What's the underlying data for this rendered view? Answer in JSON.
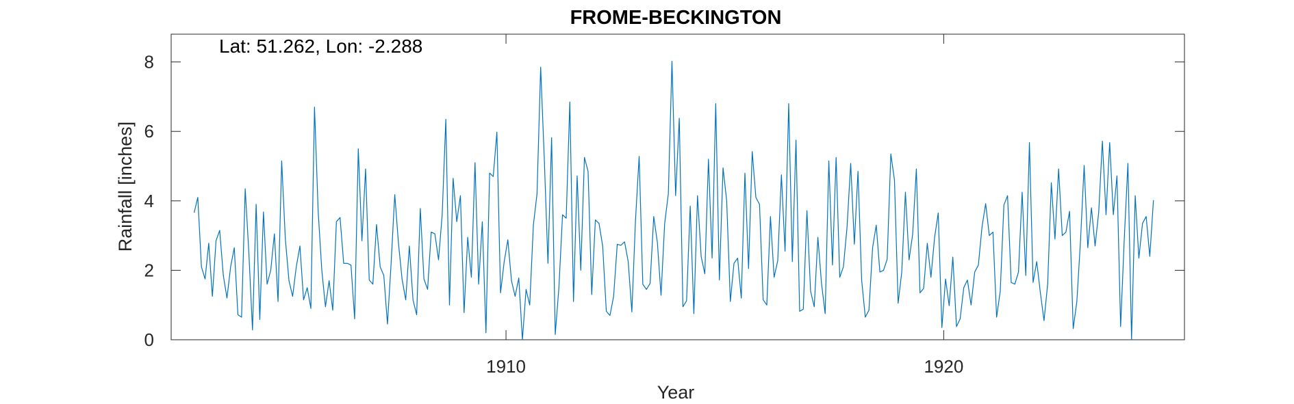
{
  "chart_data": {
    "type": "line",
    "title": "FROME-BECKINGTON",
    "xlabel": "Year",
    "ylabel": "Rainfall [inches]",
    "annotation": "Lat: 51.262, Lon: -2.288",
    "xlim": [
      1902.35,
      1925.5
    ],
    "ylim": [
      0,
      8.8
    ],
    "x_ticks": [
      1910,
      1920
    ],
    "y_ticks": [
      0,
      2,
      4,
      6,
      8
    ],
    "grid": false,
    "line_color": "#0072BD",
    "x_start": 1902.875,
    "x_step": 0.083333,
    "series": [
      {
        "values": [
          3.66,
          4.1,
          2.1,
          1.75,
          2.78,
          1.25,
          2.85,
          3.15,
          1.85,
          1.2,
          2.1,
          2.65,
          0.72,
          0.65,
          4.35,
          2.5,
          0.28,
          3.9,
          0.58,
          3.68,
          1.6,
          2.0,
          3.05,
          1.1,
          5.15,
          2.9,
          1.7,
          1.25,
          2.1,
          2.7,
          1.15,
          1.5,
          0.9,
          6.7,
          3.7,
          2.0,
          0.95,
          1.7,
          0.85,
          3.4,
          3.52,
          2.2,
          2.2,
          2.15,
          0.6,
          5.5,
          2.85,
          4.92,
          1.72,
          1.6,
          3.32,
          2.1,
          1.85,
          0.45,
          2.2,
          4.18,
          2.8,
          1.75,
          1.15,
          2.7,
          1.15,
          0.72,
          3.78,
          1.75,
          1.45,
          3.1,
          3.05,
          2.3,
          3.6,
          6.35,
          1.0,
          4.65,
          3.4,
          4.15,
          0.78,
          2.95,
          1.8,
          5.1,
          1.6,
          3.4,
          0.2,
          4.8,
          4.7,
          5.98,
          1.35,
          2.25,
          2.88,
          1.7,
          1.25,
          1.78,
          0.0,
          1.45,
          1.0,
          3.3,
          4.2,
          7.85,
          5.2,
          2.2,
          5.82,
          0.15,
          1.5,
          3.6,
          3.5,
          6.85,
          1.1,
          4.72,
          2.0,
          5.25,
          4.85,
          1.3,
          3.45,
          3.35,
          2.7,
          0.82,
          0.7,
          1.25,
          2.75,
          2.72,
          2.82,
          2.25,
          0.8,
          3.45,
          5.28,
          1.6,
          1.45,
          1.62,
          3.55,
          2.8,
          1.28,
          3.35,
          4.2,
          8.02,
          4.15,
          6.38,
          0.95,
          1.12,
          3.85,
          0.75,
          4.15,
          2.4,
          1.9,
          5.2,
          2.35,
          6.8,
          1.72,
          4.95,
          4.0,
          1.1,
          2.2,
          2.35,
          1.2,
          4.8,
          2.05,
          5.42,
          4.1,
          3.9,
          1.15,
          1.0,
          3.55,
          1.8,
          2.28,
          4.75,
          2.55,
          6.8,
          2.25,
          5.75,
          0.82,
          0.88,
          3.72,
          1.4,
          0.95,
          2.95,
          1.62,
          0.75,
          5.15,
          2.15,
          5.25,
          1.8,
          2.1,
          3.25,
          5.08,
          2.75,
          4.85,
          1.72,
          0.65,
          0.85,
          2.65,
          3.3,
          1.95,
          2.0,
          2.32,
          5.35,
          4.6,
          1.05,
          1.95,
          4.25,
          2.3,
          3.05,
          4.92,
          1.35,
          1.48,
          2.78,
          1.8,
          2.95,
          3.65,
          0.35,
          1.75,
          0.98,
          2.38,
          0.38,
          0.6,
          1.5,
          1.72,
          1.0,
          1.95,
          2.15,
          3.25,
          3.92,
          3.0,
          3.1,
          0.65,
          1.4,
          3.88,
          4.15,
          1.65,
          1.6,
          1.95,
          4.25,
          1.85,
          5.68,
          1.65,
          2.25,
          1.35,
          0.55,
          1.6,
          4.52,
          2.9,
          4.92,
          3.0,
          3.1,
          3.7,
          0.32,
          1.1,
          2.85,
          5.02,
          2.65,
          3.8,
          2.7,
          3.68,
          5.72,
          3.6,
          5.68,
          3.6,
          4.72,
          0.38,
          2.9,
          5.08,
          0.0,
          4.15,
          2.35,
          3.35,
          3.55,
          2.4,
          4.02
        ]
      }
    ]
  }
}
